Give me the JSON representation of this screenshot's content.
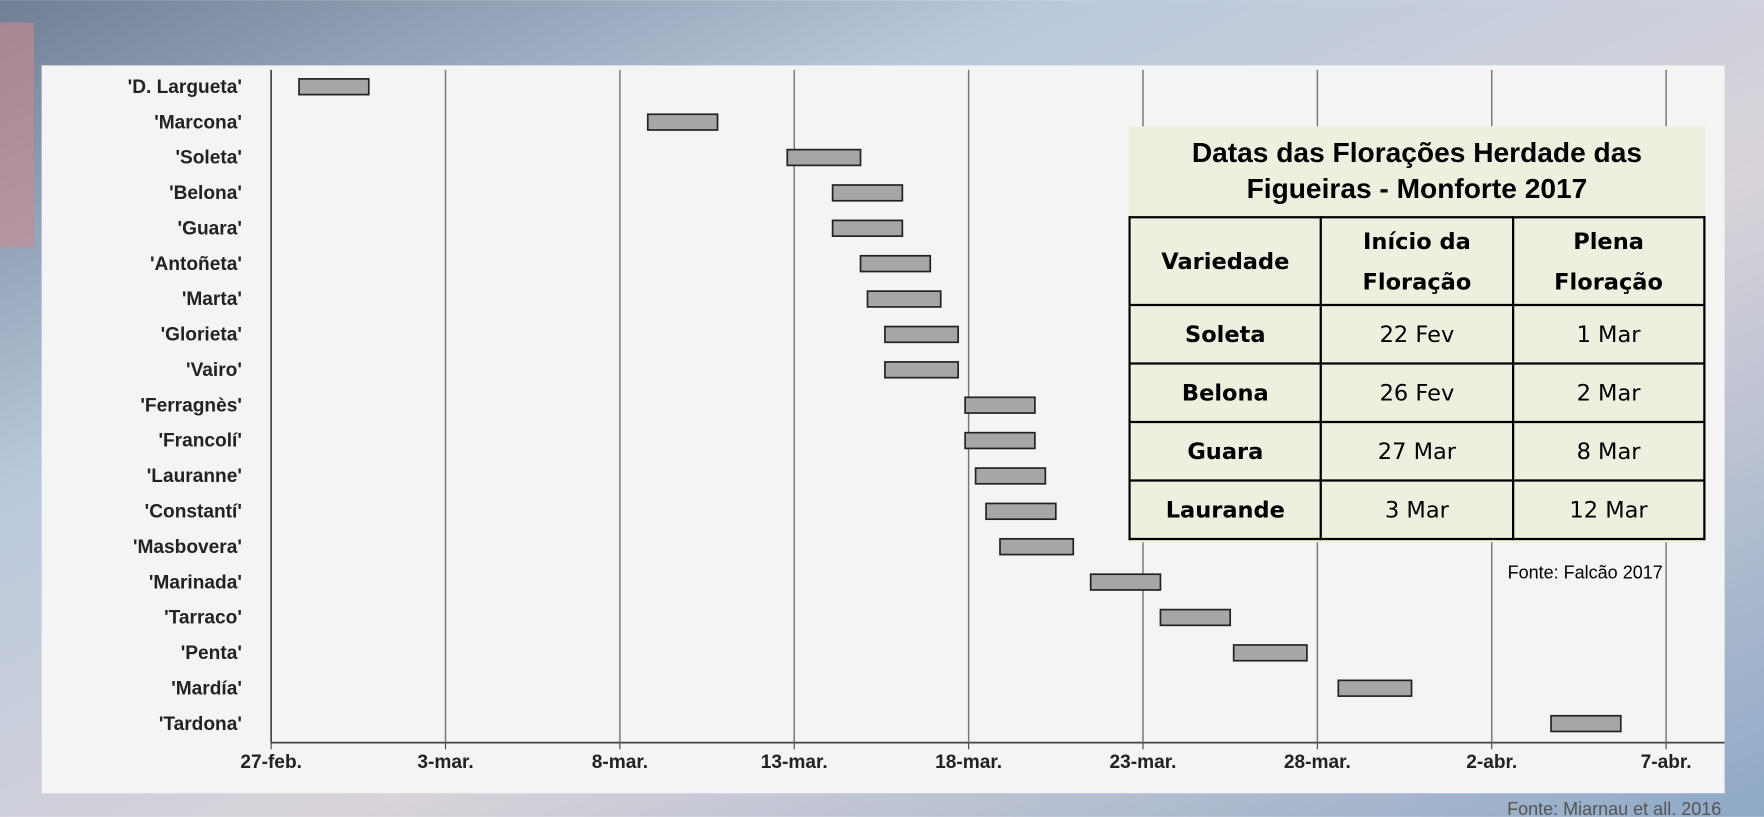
{
  "chart_data": {
    "type": "gantt",
    "categories": [
      "'D. Largueta'",
      "'Marcona'",
      "'Soleta'",
      "'Belona'",
      "'Guara'",
      "'Antoñeta'",
      "'Marta'",
      "'Glorieta'",
      "'Vairo'",
      "'Ferragnès'",
      "'Francolí'",
      "'Lauranne'",
      "'Constantí'",
      "'Masbovera'",
      "'Marinada'",
      "'Tarraco'",
      "'Penta'",
      "'Mardía'",
      "'Tardona'"
    ],
    "start": [
      0.8,
      10.8,
      14.8,
      16.1,
      16.1,
      16.9,
      17.1,
      17.6,
      17.6,
      19.9,
      19.9,
      20.2,
      20.5,
      20.9,
      23.5,
      25.5,
      27.6,
      30.6,
      36.7
    ],
    "end": [
      2.8,
      12.8,
      16.9,
      18.1,
      18.1,
      18.9,
      19.2,
      19.7,
      19.7,
      21.9,
      21.9,
      22.2,
      22.5,
      23.0,
      25.5,
      27.5,
      29.7,
      32.7,
      38.7
    ],
    "color": "#a6a6a6",
    "xlim": [
      0,
      41.7
    ],
    "xticks": [
      {
        "value": 0,
        "label": "27-feb."
      },
      {
        "value": 5,
        "label": "3-mar."
      },
      {
        "value": 10,
        "label": "8-mar."
      },
      {
        "value": 15,
        "label": "13-mar."
      },
      {
        "value": 20,
        "label": "18-mar."
      },
      {
        "value": 25,
        "label": "23-mar."
      },
      {
        "value": 30,
        "label": "28-mar."
      },
      {
        "value": 35,
        "label": "2-abr."
      },
      {
        "value": 40,
        "label": "7-abr."
      }
    ],
    "grid": true
  },
  "table": {
    "title": "Datas das Florações Herdade das Figueiras - Monforte 2017",
    "header": [
      "Variedade",
      "Início da Floração",
      "Plena Floração"
    ],
    "rows": [
      [
        "Soleta",
        "22 Fev",
        "1 Mar"
      ],
      [
        "Belona",
        "26 Fev",
        "2 Mar"
      ],
      [
        "Guara",
        "27 Mar",
        "8 Mar"
      ],
      [
        "Laurande",
        "3 Mar",
        "12 Mar"
      ]
    ],
    "source": "Fonte: Falcão 2017"
  },
  "source": "Fonte: Miarnau et all. 2016"
}
